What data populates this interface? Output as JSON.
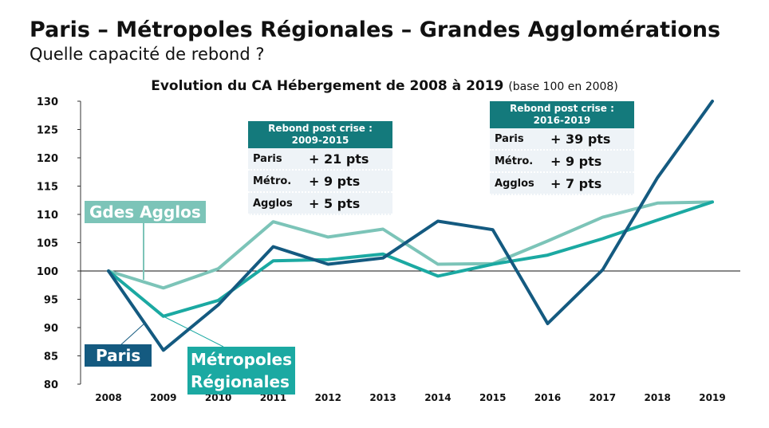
{
  "header": {
    "title": "Paris – Métropoles Régionales – Grandes Agglomérations",
    "subtitle": "Quelle capacité de rebond ?"
  },
  "chart_data": {
    "type": "line",
    "title": "Evolution du CA Hébergement de 2008 à 2019",
    "title_note": "(base 100 en 2008)",
    "x": [
      "2008",
      "2009",
      "2010",
      "2011",
      "2012",
      "2013",
      "2014",
      "2015",
      "2016",
      "2017",
      "2018",
      "2019"
    ],
    "yticks": [
      80,
      85,
      90,
      95,
      100,
      105,
      110,
      115,
      120,
      125,
      130
    ],
    "ylim": [
      80,
      130
    ],
    "reference_line": 100,
    "grid": false,
    "series": [
      {
        "name": "Paris",
        "color": "#145a80",
        "values": [
          100,
          86,
          94,
          104.3,
          101.2,
          102.3,
          108.8,
          107.3,
          90.7,
          100.2,
          116.5,
          130
        ]
      },
      {
        "name": "Métropoles Régionales",
        "color": "#1ba9a2",
        "values": [
          100,
          92,
          94.8,
          101.8,
          102,
          103,
          99.1,
          101.2,
          102.8,
          105.7,
          109,
          112.2
        ]
      },
      {
        "name": "Gdes Agglos",
        "color": "#7cc4b8",
        "values": [
          100,
          97,
          100.4,
          108.7,
          106,
          107.4,
          101.2,
          101.3,
          105.3,
          109.5,
          112,
          112.2
        ]
      }
    ],
    "labels": {
      "paris": "Paris",
      "metropoles_line1": "Métropoles",
      "metropoles_line2": "Régionales",
      "agglos": "Gdes Agglos"
    },
    "tables": [
      {
        "header_line1": "Rebond post crise :",
        "header_line2": "2009-2015",
        "rows": [
          {
            "label": "Paris",
            "value": "+ 21 pts"
          },
          {
            "label": "Métro.",
            "value": "+ 9 pts"
          },
          {
            "label": "Agglos",
            "value": "+ 5 pts"
          }
        ]
      },
      {
        "header_line1": "Rebond post crise :",
        "header_line2": "2016-2019",
        "rows": [
          {
            "label": "Paris",
            "value": "+ 39 pts"
          },
          {
            "label": "Métro.",
            "value": "+ 9 pts"
          },
          {
            "label": "Agglos",
            "value": "+ 7 pts"
          }
        ]
      }
    ]
  }
}
